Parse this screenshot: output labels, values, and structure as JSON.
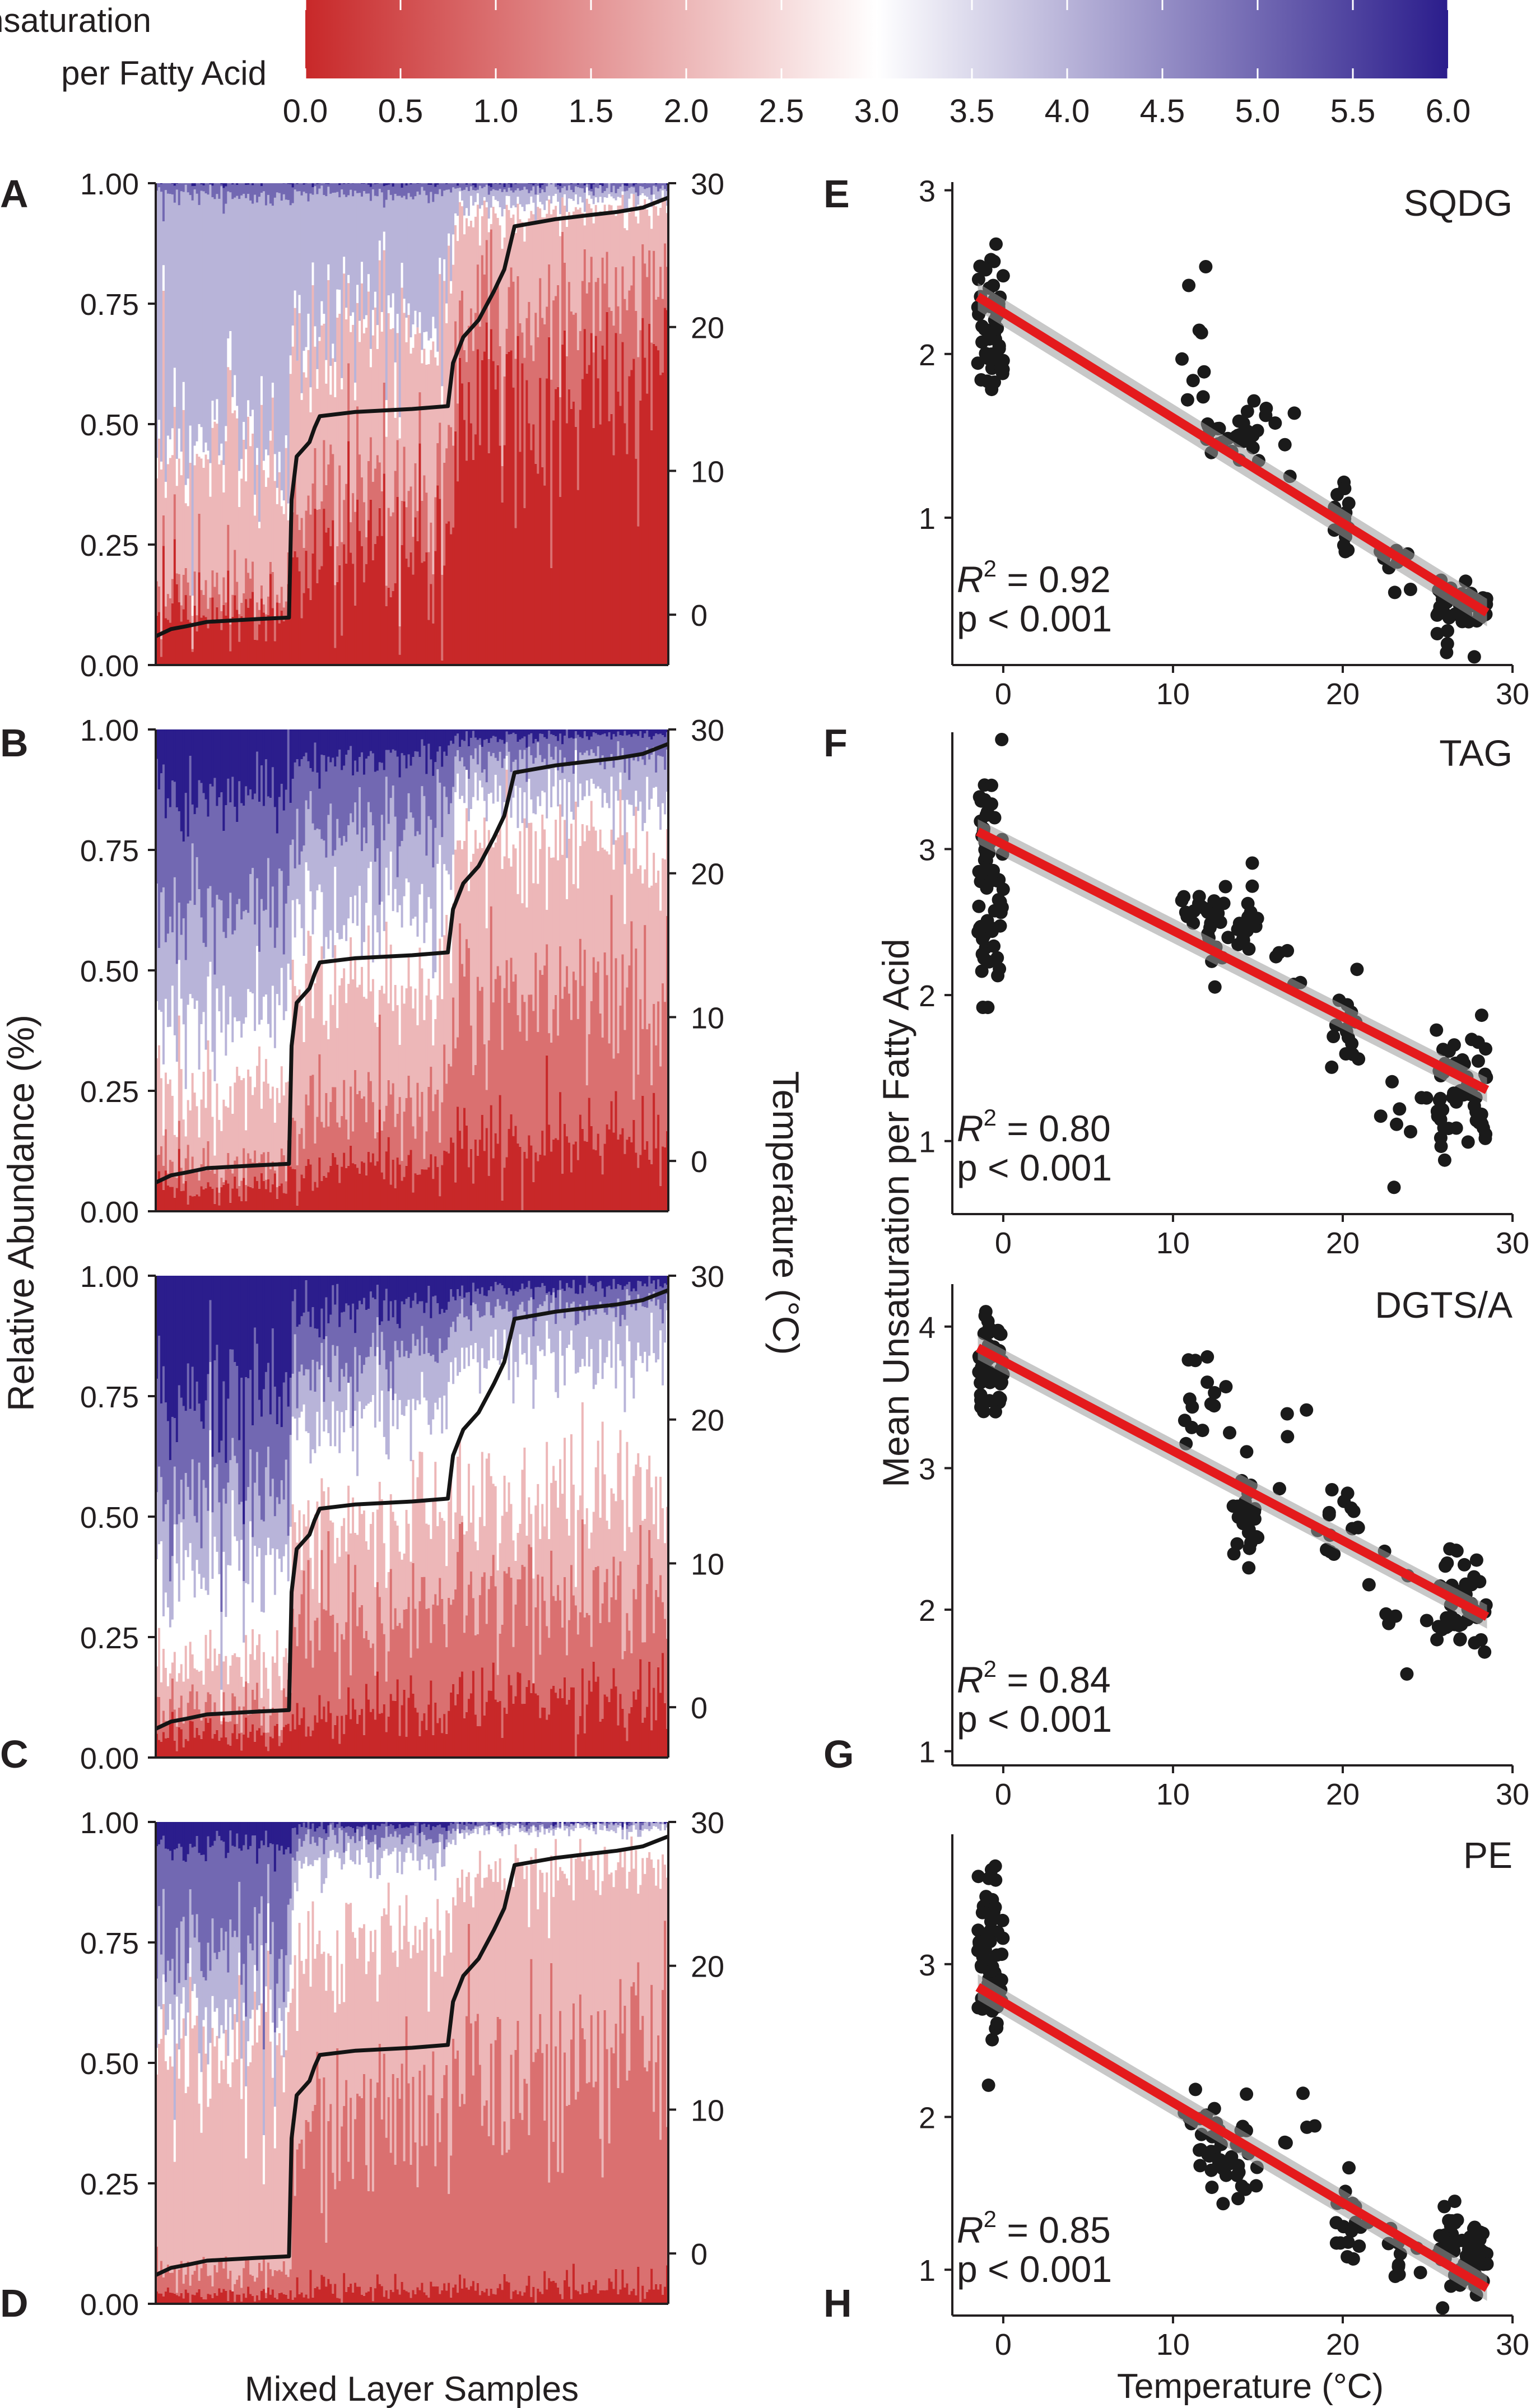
{
  "colorbar": {
    "title_line1": "Unsaturation",
    "title_line2": "per Fatty Acid",
    "min": 0.0,
    "max": 6.0,
    "ticks": [
      "0.0",
      "0.5",
      "1.0",
      "1.5",
      "2.0",
      "2.5",
      "3.0",
      "3.5",
      "4.0",
      "4.5",
      "5.0",
      "5.5",
      "6.0"
    ],
    "colors": {
      "low": "#c82829",
      "mid": "#ffffff",
      "high": "#2b1d8c"
    }
  },
  "chart_data": [
    {
      "panel": "A",
      "type": "area",
      "xlabel": "Mixed Layer Samples",
      "ylabel": "Relative Abundance (%)",
      "y2label": "Temperature (°C)",
      "ylim": [
        0,
        1
      ],
      "y2lim": [
        -3.5,
        30
      ],
      "yticks": [
        "0.00",
        "0.25",
        "0.50",
        "0.75",
        "1.00"
      ],
      "y2ticks": [
        "0",
        "10",
        "20",
        "30"
      ],
      "band_unsaturation": [
        0,
        1,
        2,
        3,
        4,
        5,
        6
      ],
      "composition_x": [
        0.0,
        0.26,
        0.27,
        0.56,
        0.59,
        1.0
      ],
      "composition": [
        [
          0.1,
          0.05,
          0.28,
          0.05,
          0.5,
          0.02,
          0.0
        ],
        [
          0.11,
          0.05,
          0.27,
          0.04,
          0.5,
          0.03,
          0.0
        ],
        [
          0.24,
          0.12,
          0.32,
          0.04,
          0.26,
          0.02,
          0.0
        ],
        [
          0.29,
          0.13,
          0.3,
          0.04,
          0.22,
          0.02,
          0.0
        ],
        [
          0.55,
          0.2,
          0.18,
          0.03,
          0.03,
          0.01,
          0.0
        ],
        [
          0.58,
          0.2,
          0.17,
          0.02,
          0.02,
          0.01,
          0.0
        ]
      ],
      "temperature_x": [
        0.0,
        0.03,
        0.06,
        0.1,
        0.2,
        0.26,
        0.265,
        0.275,
        0.3,
        0.31,
        0.32,
        0.39,
        0.5,
        0.57,
        0.58,
        0.6,
        0.63,
        0.66,
        0.68,
        0.7,
        0.78,
        0.85,
        0.9,
        0.95,
        1.0
      ],
      "temperature": [
        -1.5,
        -1.0,
        -0.8,
        -0.5,
        -0.3,
        -0.2,
        8.0,
        11.0,
        12.0,
        13.0,
        13.8,
        14.1,
        14.3,
        14.5,
        17.5,
        19.3,
        20.5,
        22.5,
        24.0,
        27.0,
        27.5,
        27.8,
        28.0,
        28.3,
        29.0
      ]
    },
    {
      "panel": "B",
      "type": "area",
      "ylim": [
        0,
        1
      ],
      "y2lim": [
        -3.5,
        30
      ],
      "yticks": [
        "0.00",
        "0.25",
        "0.50",
        "0.75",
        "1.00"
      ],
      "y2ticks": [
        "0",
        "10",
        "20",
        "30"
      ],
      "band_unsaturation": [
        0,
        1,
        2,
        3,
        4,
        5,
        6
      ],
      "composition_x": [
        0.0,
        0.26,
        0.27,
        0.56,
        0.59,
        1.0
      ],
      "composition": [
        [
          0.05,
          0.05,
          0.15,
          0.15,
          0.22,
          0.25,
          0.13
        ],
        [
          0.05,
          0.05,
          0.15,
          0.16,
          0.22,
          0.24,
          0.13
        ],
        [
          0.08,
          0.12,
          0.25,
          0.15,
          0.18,
          0.15,
          0.07
        ],
        [
          0.1,
          0.14,
          0.25,
          0.16,
          0.16,
          0.13,
          0.06
        ],
        [
          0.15,
          0.3,
          0.3,
          0.1,
          0.08,
          0.05,
          0.02
        ],
        [
          0.15,
          0.32,
          0.3,
          0.1,
          0.08,
          0.04,
          0.01
        ]
      ],
      "temperature_x": [
        0.0,
        0.03,
        0.06,
        0.1,
        0.2,
        0.26,
        0.265,
        0.275,
        0.3,
        0.31,
        0.32,
        0.39,
        0.5,
        0.57,
        0.58,
        0.6,
        0.63,
        0.66,
        0.68,
        0.7,
        0.78,
        0.85,
        0.9,
        0.95,
        1.0
      ],
      "temperature": [
        -1.5,
        -1.0,
        -0.8,
        -0.5,
        -0.3,
        -0.2,
        8.0,
        11.0,
        12.0,
        13.0,
        13.8,
        14.1,
        14.3,
        14.5,
        17.5,
        19.3,
        20.5,
        22.5,
        24.0,
        27.0,
        27.5,
        27.8,
        28.0,
        28.3,
        29.0
      ]
    },
    {
      "panel": "C",
      "type": "area",
      "ylim": [
        0,
        1
      ],
      "y2lim": [
        -3.5,
        30
      ],
      "yticks": [
        "0.00",
        "0.25",
        "0.50",
        "0.75",
        "1.00"
      ],
      "y2ticks": [
        "0",
        "10",
        "20",
        "30"
      ],
      "band_unsaturation": [
        0,
        1,
        2,
        3,
        4,
        5,
        6
      ],
      "composition_x": [
        0.0,
        0.26,
        0.27,
        0.56,
        0.59,
        1.0
      ],
      "composition": [
        [
          0.05,
          0.05,
          0.1,
          0.2,
          0.15,
          0.2,
          0.25
        ],
        [
          0.05,
          0.05,
          0.1,
          0.2,
          0.15,
          0.2,
          0.25
        ],
        [
          0.08,
          0.2,
          0.2,
          0.2,
          0.12,
          0.12,
          0.08
        ],
        [
          0.1,
          0.2,
          0.2,
          0.22,
          0.12,
          0.1,
          0.06
        ],
        [
          0.12,
          0.2,
          0.2,
          0.3,
          0.1,
          0.05,
          0.03
        ],
        [
          0.12,
          0.2,
          0.22,
          0.3,
          0.1,
          0.04,
          0.02
        ]
      ],
      "temperature_x": [
        0.0,
        0.03,
        0.06,
        0.1,
        0.2,
        0.26,
        0.265,
        0.275,
        0.3,
        0.31,
        0.32,
        0.39,
        0.5,
        0.57,
        0.58,
        0.6,
        0.63,
        0.66,
        0.68,
        0.7,
        0.78,
        0.85,
        0.9,
        0.95,
        1.0
      ],
      "temperature": [
        -1.5,
        -1.0,
        -0.8,
        -0.5,
        -0.3,
        -0.2,
        8.0,
        11.0,
        12.0,
        13.0,
        13.8,
        14.1,
        14.3,
        14.5,
        17.5,
        19.3,
        20.5,
        22.5,
        24.0,
        27.0,
        27.5,
        27.8,
        28.0,
        28.3,
        29.0
      ]
    },
    {
      "panel": "D",
      "type": "area",
      "ylim": [
        0,
        1
      ],
      "y2lim": [
        -3.5,
        30
      ],
      "yticks": [
        "0.00",
        "0.25",
        "0.50",
        "0.75",
        "1.00"
      ],
      "y2ticks": [
        "0",
        "10",
        "20",
        "30"
      ],
      "band_unsaturation": [
        0,
        1,
        2,
        3,
        4,
        5,
        6
      ],
      "composition_x": [
        0.0,
        0.26,
        0.27,
        0.56,
        0.59,
        1.0
      ],
      "composition": [
        [
          0.02,
          0.05,
          0.45,
          0.08,
          0.15,
          0.2,
          0.05
        ],
        [
          0.02,
          0.05,
          0.45,
          0.08,
          0.15,
          0.2,
          0.05
        ],
        [
          0.03,
          0.35,
          0.35,
          0.18,
          0.05,
          0.03,
          0.01
        ],
        [
          0.03,
          0.38,
          0.35,
          0.17,
          0.04,
          0.02,
          0.01
        ],
        [
          0.03,
          0.45,
          0.4,
          0.1,
          0.01,
          0.01,
          0.0
        ],
        [
          0.04,
          0.5,
          0.38,
          0.07,
          0.01,
          0.0,
          0.0
        ]
      ],
      "temperature_x": [
        0.0,
        0.03,
        0.06,
        0.1,
        0.2,
        0.26,
        0.265,
        0.275,
        0.3,
        0.31,
        0.32,
        0.39,
        0.5,
        0.57,
        0.58,
        0.6,
        0.63,
        0.66,
        0.68,
        0.7,
        0.78,
        0.85,
        0.9,
        0.95,
        1.0
      ],
      "temperature": [
        -1.5,
        -1.0,
        -0.8,
        -0.5,
        -0.3,
        -0.2,
        8.0,
        11.0,
        12.0,
        13.0,
        13.8,
        14.1,
        14.3,
        14.5,
        17.5,
        19.3,
        20.5,
        22.5,
        24.0,
        27.0,
        27.5,
        27.8,
        28.0,
        28.3,
        29.0
      ]
    },
    {
      "panel": "E",
      "type": "scatter",
      "title": "SQDG",
      "xlim": [
        -3,
        30
      ],
      "ylim": [
        0.1,
        3.05
      ],
      "xticks": [
        0,
        10,
        20,
        30
      ],
      "yticks": [
        1,
        2,
        3
      ],
      "fit": {
        "x": [
          -1.5,
          28.5
        ],
        "y": [
          2.35,
          0.42
        ]
      },
      "r2_value": "0.92",
      "p_text": "p < 0.001",
      "clusters": [
        {
          "x": [
            -1.5,
            0.0
          ],
          "y_mean": 2.15,
          "y_sd": 0.22,
          "n": 55
        },
        {
          "x": [
            10.5,
            12.0
          ],
          "y_mean": 1.95,
          "y_sd": 0.3,
          "n": 10
        },
        {
          "x": [
            12.0,
            15.5
          ],
          "y_mean": 1.5,
          "y_sd": 0.1,
          "n": 30
        },
        {
          "x": [
            16.0,
            18.0
          ],
          "y_mean": 1.45,
          "y_sd": 0.25,
          "n": 4
        },
        {
          "x": [
            19.5,
            20.5
          ],
          "y_mean": 1.0,
          "y_sd": 0.12,
          "n": 18
        },
        {
          "x": [
            22.0,
            24.5
          ],
          "y_mean": 0.7,
          "y_sd": 0.08,
          "n": 8
        },
        {
          "x": [
            25.5,
            28.5
          ],
          "y_mean": 0.45,
          "y_sd": 0.1,
          "n": 45
        }
      ]
    },
    {
      "panel": "F",
      "type": "scatter",
      "title": "TAG",
      "xlim": [
        -3,
        30
      ],
      "ylim": [
        0.5,
        3.8
      ],
      "xticks": [
        0,
        10,
        20,
        30
      ],
      "yticks": [
        1,
        2,
        3
      ],
      "fit": {
        "x": [
          -1.5,
          28.5
        ],
        "y": [
          3.12,
          1.35
        ]
      },
      "r2_value": "0.80",
      "p_text": "p < 0.001",
      "clusters": [
        {
          "x": [
            -1.5,
            0.0
          ],
          "y_mean": 2.8,
          "y_sd": 0.35,
          "n": 65
        },
        {
          "x": [
            10.5,
            12.0
          ],
          "y_mean": 2.6,
          "y_sd": 0.15,
          "n": 10
        },
        {
          "x": [
            12.0,
            15.0
          ],
          "y_mean": 2.45,
          "y_sd": 0.15,
          "n": 35
        },
        {
          "x": [
            16.0,
            18.5
          ],
          "y_mean": 2.3,
          "y_sd": 0.15,
          "n": 5
        },
        {
          "x": [
            19.0,
            21.0
          ],
          "y_mean": 1.85,
          "y_sd": 0.2,
          "n": 15
        },
        {
          "x": [
            22.0,
            25.0
          ],
          "y_mean": 1.2,
          "y_sd": 0.3,
          "n": 8
        },
        {
          "x": [
            25.5,
            28.5
          ],
          "y_mean": 1.35,
          "y_sd": 0.2,
          "n": 55
        }
      ]
    },
    {
      "panel": "G",
      "type": "scatter",
      "title": "DGTS/A",
      "xlim": [
        -3,
        30
      ],
      "ylim": [
        0.9,
        4.3
      ],
      "xticks": [
        0,
        10,
        20,
        30
      ],
      "yticks": [
        1,
        2,
        3,
        4
      ],
      "fit": {
        "x": [
          -1.5,
          28.5
        ],
        "y": [
          3.85,
          1.95
        ]
      },
      "r2_value": "0.84",
      "p_text": "p < 0.001",
      "clusters": [
        {
          "x": [
            -1.5,
            0.0
          ],
          "y_mean": 3.7,
          "y_sd": 0.18,
          "n": 45
        },
        {
          "x": [
            10.5,
            13.5
          ],
          "y_mean": 3.45,
          "y_sd": 0.15,
          "n": 15
        },
        {
          "x": [
            13.5,
            15.0
          ],
          "y_mean": 2.7,
          "y_sd": 0.15,
          "n": 30
        },
        {
          "x": [
            15.5,
            18.0
          ],
          "y_mean": 3.1,
          "y_sd": 0.25,
          "n": 4
        },
        {
          "x": [
            18.5,
            21.0
          ],
          "y_mean": 2.6,
          "y_sd": 0.2,
          "n": 15
        },
        {
          "x": [
            21.5,
            25.0
          ],
          "y_mean": 2.1,
          "y_sd": 0.25,
          "n": 8
        },
        {
          "x": [
            25.5,
            28.5
          ],
          "y_mean": 2.05,
          "y_sd": 0.15,
          "n": 50
        }
      ]
    },
    {
      "panel": "H",
      "type": "scatter",
      "title": "PE",
      "xlim": [
        -3,
        30
      ],
      "ylim": [
        0.7,
        3.85
      ],
      "xticks": [
        0,
        10,
        20,
        30
      ],
      "yticks": [
        1,
        2,
        3
      ],
      "fit": {
        "x": [
          -1.5,
          28.5
        ],
        "y": [
          2.85,
          0.88
        ]
      },
      "r2_value": "0.85",
      "p_text": "p < 0.001",
      "clusters": [
        {
          "x": [
            -1.5,
            0.0
          ],
          "y_mean": 3.0,
          "y_sd": 0.3,
          "n": 60
        },
        {
          "x": [
            10.5,
            12.0
          ],
          "y_mean": 1.9,
          "y_sd": 0.25,
          "n": 10
        },
        {
          "x": [
            12.0,
            15.0
          ],
          "y_mean": 1.75,
          "y_sd": 0.18,
          "n": 35
        },
        {
          "x": [
            16.0,
            18.5
          ],
          "y_mean": 1.9,
          "y_sd": 0.15,
          "n": 5
        },
        {
          "x": [
            19.5,
            21.5
          ],
          "y_mean": 1.35,
          "y_sd": 0.15,
          "n": 18
        },
        {
          "x": [
            22.0,
            25.0
          ],
          "y_mean": 1.15,
          "y_sd": 0.12,
          "n": 10
        },
        {
          "x": [
            25.5,
            28.5
          ],
          "y_mean": 1.1,
          "y_sd": 0.15,
          "n": 55
        }
      ]
    }
  ],
  "scatter_ylabel": "Mean Unsaturation per Fatty Acid",
  "scatter_xlabel": "Temperature (°C)"
}
